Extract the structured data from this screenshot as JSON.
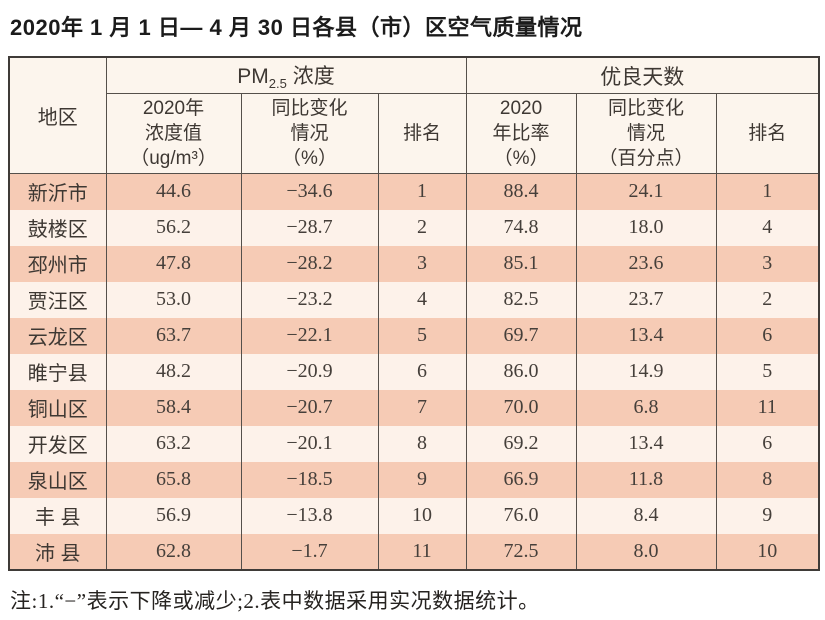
{
  "page": {
    "title": "2020年 1 月 1 日— 4 月 30 日各县（市）区空气质量情况",
    "note": "注:1.“−”表示下降或减少;2.表中数据采用实况数据统计。"
  },
  "colors": {
    "row_stripe_dark": "#f6cbb5",
    "row_stripe_light": "#fdf2ea",
    "header_background": "#fcf5ed",
    "table_border": "#3f3b38",
    "inner_border": "#55504b"
  },
  "table": {
    "header": {
      "region": "地区",
      "pm25_group": {
        "prefix": "PM",
        "sub": "2.5",
        "suffix": " 浓度"
      },
      "days_group": "优良天数",
      "sub_columns": {
        "pm25_value": "2020年\n浓度值\n（ug/m³）",
        "pm25_change": "同比变化\n情况\n（%）",
        "pm25_rank": "排名",
        "days_ratio": "2020\n年比率\n（%）",
        "days_change": "同比变化\n情况\n（百分点）",
        "days_rank": "排名"
      }
    },
    "rows": [
      [
        "新沂市",
        "44.6",
        "−34.6",
        "1",
        "88.4",
        "24.1",
        "1"
      ],
      [
        "鼓楼区",
        "56.2",
        "−28.7",
        "2",
        "74.8",
        "18.0",
        "4"
      ],
      [
        "邳州市",
        "47.8",
        "−28.2",
        "3",
        "85.1",
        "23.6",
        "3"
      ],
      [
        "贾汪区",
        "53.0",
        "−23.2",
        "4",
        "82.5",
        "23.7",
        "2"
      ],
      [
        "云龙区",
        "63.7",
        "−22.1",
        "5",
        "69.7",
        "13.4",
        "6"
      ],
      [
        "睢宁县",
        "48.2",
        "−20.9",
        "6",
        "86.0",
        "14.9",
        "5"
      ],
      [
        "铜山区",
        "58.4",
        "−20.7",
        "7",
        "70.0",
        "6.8",
        "11"
      ],
      [
        "开发区",
        "63.2",
        "−20.1",
        "8",
        "69.2",
        "13.4",
        "6"
      ],
      [
        "泉山区",
        "65.8",
        "−18.5",
        "9",
        "66.9",
        "11.8",
        "8"
      ],
      [
        "丰 县",
        "56.9",
        "−13.8",
        "10",
        "76.0",
        "8.4",
        "9"
      ],
      [
        "沛 县",
        "62.8",
        "−1.7",
        "11",
        "72.5",
        "8.0",
        "10"
      ]
    ]
  }
}
